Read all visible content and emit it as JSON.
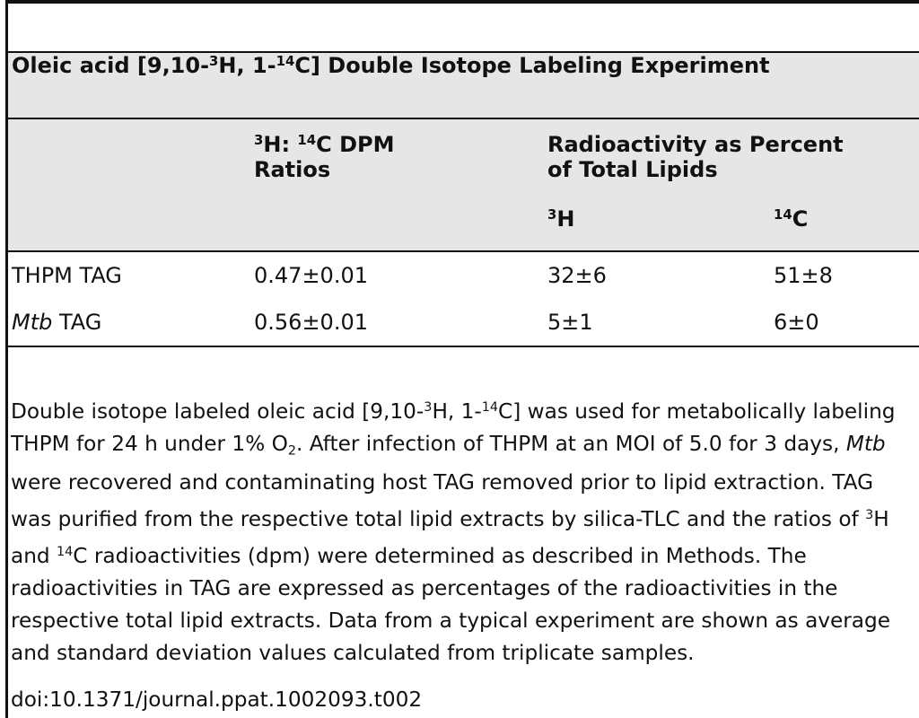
{
  "table": {
    "title": [
      "Oleic acid [9,10-",
      {
        "sup": "3"
      },
      "H, 1-",
      {
        "sup": "14"
      },
      "C] Double Isotope Labeling Experiment"
    ],
    "header": [
      [],
      [
        {
          "sup": "3"
        },
        "H: ",
        {
          "sup": "14"
        },
        "C DPM Ratios"
      ],
      [
        "Radioactivity as Percent of Total Lipids"
      ]
    ],
    "subheader": [
      [
        {
          "sup": "3"
        },
        "H"
      ],
      [
        {
          "sup": "14"
        },
        "C"
      ]
    ],
    "rows": [
      [
        [
          "THPM TAG"
        ],
        [
          "0.47±0.01"
        ],
        [
          "32±6"
        ],
        [
          "51±8"
        ]
      ],
      [
        [
          {
            "italic": "Mtb"
          },
          " TAG"
        ],
        [
          "0.56±0.01"
        ],
        [
          "5±1"
        ],
        [
          "6±0"
        ]
      ]
    ]
  },
  "caption": [
    "Double isotope labeled oleic acid [9,10-",
    {
      "sup": "3"
    },
    "H, 1-",
    {
      "sup": "14"
    },
    "C] was used for metabolically labeling THPM for 24 h under 1% O",
    {
      "sub2": "2"
    },
    ". After infection of THPM at an MOI of 5.0 for 3 days, ",
    {
      "italic": "Mtb"
    },
    " were recovered and contaminating host TAG removed prior to lipid extraction. TAG was purified from the respective total lipid extracts by silica-TLC and the ratios of ",
    {
      "sup": "3"
    },
    "H and ",
    {
      "sup": "14"
    },
    "C radioactivities (dpm) were determined as described in Methods. The radioactivities in TAG are expressed as percentages of the radioactivities in the respective total lipid extracts. Data from a typical experiment are shown as average and standard deviation values calculated from triplicate samples."
  ],
  "doi": "doi:10.1371/journal.ppat.1002093.t002"
}
